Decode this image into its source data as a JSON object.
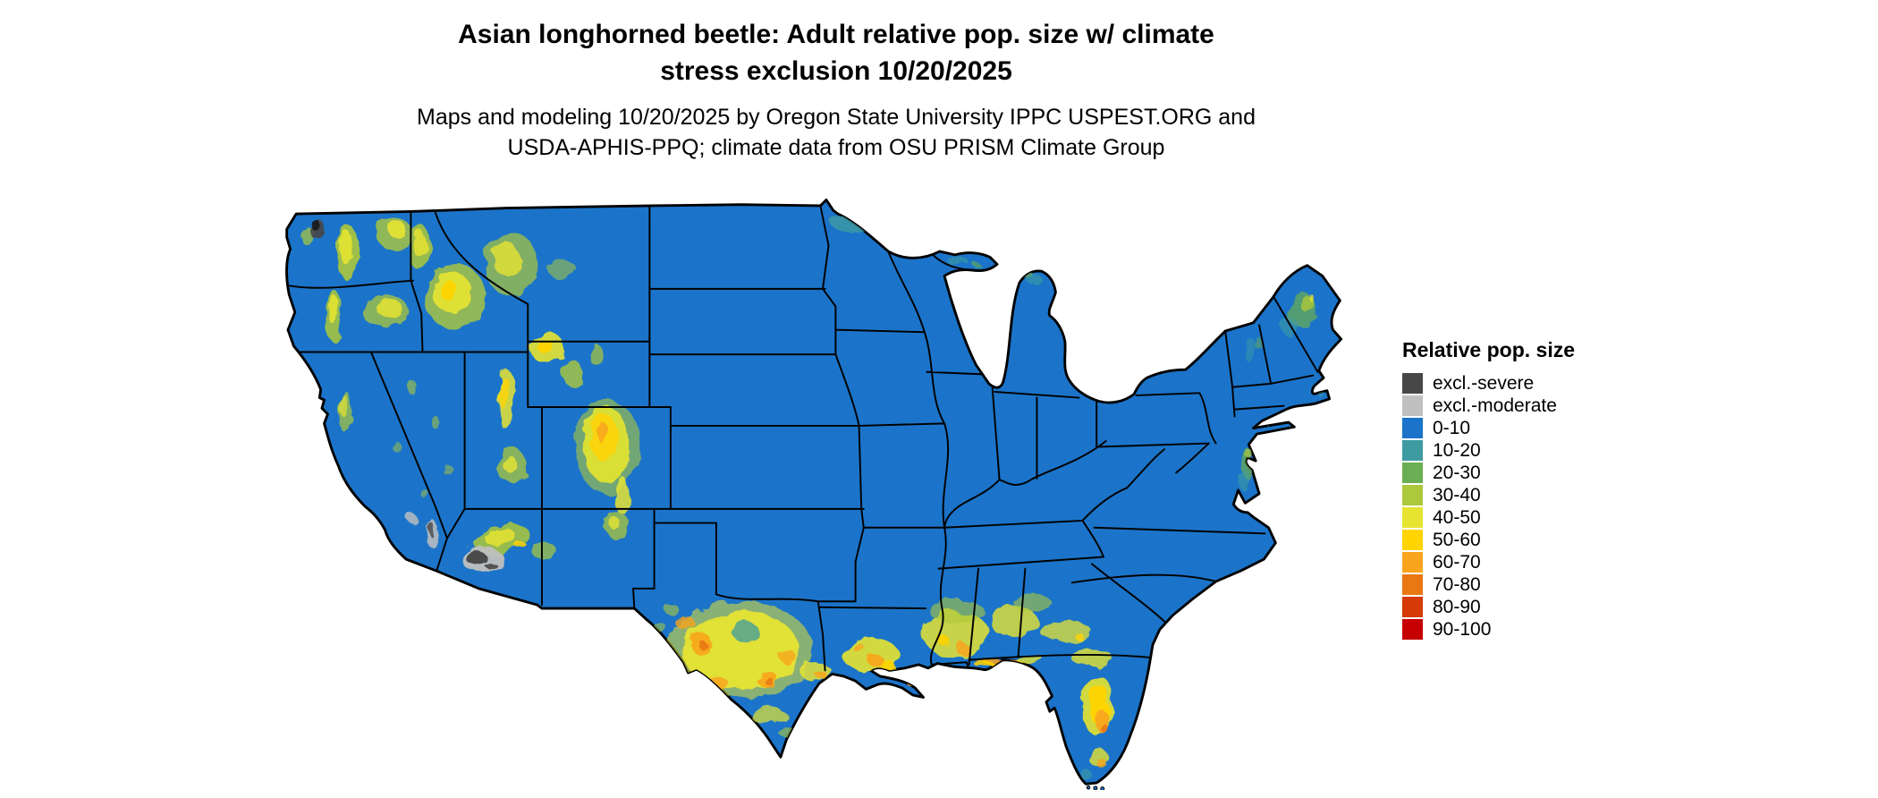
{
  "title": {
    "line1": "Asian longhorned beetle: Adult relative pop. size w/ climate",
    "line2": "stress exclusion 10/20/2025"
  },
  "subtitle": {
    "line1": "Maps and modeling 10/20/2025 by Oregon State University IPPC USPEST.ORG and",
    "line2": "USDA-APHIS-PPQ; climate data from OSU PRISM Climate Group"
  },
  "legend": {
    "title": "Relative pop. size",
    "items": [
      {
        "label": "excl.-severe",
        "color": "#474747"
      },
      {
        "label": "excl.-moderate",
        "color": "#C0C0C0"
      },
      {
        "label": "0-10",
        "color": "#1B74C9"
      },
      {
        "label": "10-20",
        "color": "#3E9BA2"
      },
      {
        "label": "20-30",
        "color": "#6BAE53"
      },
      {
        "label": "30-40",
        "color": "#ACC83B"
      },
      {
        "label": "40-50",
        "color": "#E6E431"
      },
      {
        "label": "50-60",
        "color": "#FFD400"
      },
      {
        "label": "60-70",
        "color": "#F8A51D"
      },
      {
        "label": "70-80",
        "color": "#E97712"
      },
      {
        "label": "80-90",
        "color": "#D63A06"
      },
      {
        "label": "90-100",
        "color": "#C60000"
      }
    ]
  },
  "map": {
    "type": "raster-choropleth-conus",
    "base_color": "#1B74C9",
    "border_color": "#000000",
    "background": "#FFFFFF",
    "palette": {
      "yg": "#ACC83B",
      "ye": "#E6E431",
      "go": "#FFD400",
      "or": "#F8A51D",
      "do": "#E97712",
      "te": "#3E9BA2",
      "gr": "#6BAE53",
      "gl": "#C0C0C0",
      "gd": "#474747",
      "dk": "#1A1A1A"
    },
    "hotspots": [
      [
        64,
        46,
        9,
        24,
        0,
        "yg",
        0.9
      ],
      [
        63,
        42,
        5,
        15,
        0,
        "ye",
        0.9
      ],
      [
        104,
        30,
        16,
        13,
        0,
        "yg",
        0.8
      ],
      [
        107,
        27,
        8,
        7,
        0,
        "ye",
        0.9
      ],
      [
        30,
        32,
        6,
        8,
        0,
        "yg",
        0.7
      ],
      [
        52,
        100,
        7,
        22,
        0,
        "yg",
        0.85
      ],
      [
        52,
        95,
        4,
        13,
        0,
        "ye",
        0.9
      ],
      [
        96,
        96,
        20,
        14,
        0,
        "yg",
        0.75
      ],
      [
        99,
        93,
        11,
        8,
        0,
        "ye",
        0.85
      ],
      [
        126,
        42,
        9,
        20,
        0,
        "yg",
        0.85
      ],
      [
        126,
        39,
        5,
        12,
        0,
        "ye",
        0.85
      ],
      [
        156,
        84,
        26,
        28,
        0,
        "yg",
        0.8
      ],
      [
        153,
        80,
        16,
        18,
        0,
        "ye",
        0.9
      ],
      [
        150,
        78,
        7,
        9,
        0,
        "go",
        0.9
      ],
      [
        204,
        56,
        23,
        27,
        0,
        "yg",
        0.7
      ],
      [
        200,
        52,
        12,
        14,
        0,
        "ye",
        0.8
      ],
      [
        247,
        60,
        12,
        8,
        0,
        "yg",
        0.55
      ],
      [
        235,
        128,
        15,
        13,
        0,
        "ye",
        0.9
      ],
      [
        233,
        126,
        7,
        6,
        0,
        "go",
        0.9
      ],
      [
        256,
        149,
        9,
        11,
        0,
        "yg",
        0.8
      ],
      [
        276,
        133,
        6,
        9,
        0,
        "yg",
        0.7
      ],
      [
        120,
        162,
        4,
        6,
        0,
        "yg",
        0.6
      ],
      [
        140,
        192,
        4,
        5,
        0,
        "yg",
        0.55
      ],
      [
        106,
        212,
        3,
        5,
        0,
        "yg",
        0.5
      ],
      [
        150,
        232,
        4,
        5,
        0,
        "yg",
        0.5
      ],
      [
        130,
        252,
        3,
        4,
        0,
        "yg",
        0.5
      ],
      [
        62,
        182,
        5,
        18,
        0,
        "yg",
        0.7
      ],
      [
        61,
        177,
        3,
        10,
        0,
        "ye",
        0.7
      ],
      [
        200,
        172,
        7,
        26,
        0,
        "ye",
        0.85
      ],
      [
        198,
        166,
        4,
        14,
        0,
        "go",
        0.8
      ],
      [
        204,
        228,
        13,
        15,
        0,
        "yg",
        0.75
      ],
      [
        202,
        226,
        6,
        7,
        0,
        "ye",
        0.8
      ],
      [
        286,
        212,
        28,
        40,
        0,
        "yg",
        0.6
      ],
      [
        285,
        210,
        20,
        32,
        0,
        "ye",
        0.9
      ],
      [
        283,
        204,
        12,
        20,
        0,
        "go",
        0.85
      ],
      [
        281,
        199,
        5,
        9,
        0,
        "or",
        0.85
      ],
      [
        299,
        254,
        7,
        16,
        0,
        "ye",
        0.85
      ],
      [
        294,
        279,
        11,
        11,
        0,
        "yg",
        0.75
      ],
      [
        292,
        277,
        5,
        5,
        0,
        "ye",
        0.8
      ],
      [
        196,
        291,
        24,
        11,
        -15,
        "yg",
        0.85
      ],
      [
        194,
        289,
        13,
        6,
        -15,
        "ye",
        0.85
      ],
      [
        212,
        296,
        5,
        3,
        0,
        "go",
        0.85
      ],
      [
        231,
        300,
        11,
        7,
        0,
        "yg",
        0.7
      ],
      [
        179,
        308,
        18,
        11,
        0,
        "gl",
        0.95
      ],
      [
        173,
        306,
        9,
        6,
        0,
        "gd",
        0.95
      ],
      [
        186,
        313,
        5,
        3,
        0,
        "gd",
        0.9
      ],
      [
        136,
        286,
        5,
        12,
        0,
        "gl",
        0.85
      ],
      [
        135,
        282,
        2.5,
        6,
        0,
        "gd",
        0.8
      ],
      [
        118,
        272,
        4,
        4,
        0,
        "gl",
        0.8
      ],
      [
        400,
        386,
        62,
        42,
        0,
        "ye",
        0.55
      ],
      [
        400,
        386,
        50,
        34,
        0,
        "ye",
        0.95
      ],
      [
        404,
        370,
        12,
        8,
        0,
        "te",
        0.75
      ],
      [
        366,
        380,
        10,
        8,
        0,
        "or",
        0.9
      ],
      [
        422,
        410,
        9,
        7,
        0,
        "or",
        0.9
      ],
      [
        381,
        414,
        8,
        6,
        0,
        "or",
        0.85
      ],
      [
        440,
        391,
        7,
        6,
        0,
        "or",
        0.8
      ],
      [
        352,
        362,
        8,
        6,
        0,
        "or",
        0.8
      ],
      [
        368,
        382,
        4,
        3,
        0,
        "do",
        0.9
      ],
      [
        424,
        412,
        4,
        3,
        0,
        "do",
        0.85
      ],
      [
        340,
        350,
        6,
        5,
        0,
        "yg",
        0.6
      ],
      [
        331,
        366,
        5,
        4,
        0,
        "yg",
        0.55
      ],
      [
        424,
        442,
        16,
        7,
        0,
        "ye",
        0.7
      ],
      [
        441,
        456,
        9,
        4,
        0,
        "yg",
        0.6
      ],
      [
        464,
        404,
        14,
        7,
        0,
        "ye",
        0.85
      ],
      [
        469,
        407,
        5,
        3,
        0,
        "or",
        0.85
      ],
      [
        511,
        390,
        24,
        15,
        0,
        "ye",
        0.9
      ],
      [
        516,
        395,
        7,
        5,
        0,
        "or",
        0.9
      ],
      [
        501,
        384,
        5,
        4,
        0,
        "or",
        0.8
      ],
      [
        526,
        399,
        6,
        4,
        0,
        "go",
        0.85
      ],
      [
        548,
        415,
        5,
        3,
        0,
        "or",
        0.8
      ],
      [
        584,
        372,
        28,
        20,
        0,
        "ye",
        0.85
      ],
      [
        590,
        385,
        6,
        5,
        0,
        "or",
        0.85
      ],
      [
        574,
        378,
        5,
        4,
        0,
        "go",
        0.85
      ],
      [
        584,
        352,
        24,
        9,
        0,
        "yg",
        0.6
      ],
      [
        634,
        362,
        20,
        14,
        0,
        "ye",
        0.8
      ],
      [
        649,
        345,
        16,
        8,
        0,
        "yg",
        0.6
      ],
      [
        678,
        370,
        22,
        9,
        0,
        "ye",
        0.75
      ],
      [
        689,
        374,
        4,
        3,
        0,
        "go",
        0.8
      ],
      [
        624,
        396,
        16,
        5,
        0,
        "or",
        0.85
      ],
      [
        609,
        398,
        9,
        3,
        0,
        "go",
        0.85
      ],
      [
        646,
        393,
        12,
        4,
        0,
        "ye",
        0.8
      ],
      [
        700,
        392,
        18,
        7,
        0,
        "ye",
        0.8
      ],
      [
        704,
        432,
        14,
        26,
        0,
        "ye",
        0.9
      ],
      [
        706,
        432,
        8,
        18,
        0,
        "go",
        0.9
      ],
      [
        709,
        447,
        5,
        10,
        0,
        "or",
        0.9
      ],
      [
        710,
        452,
        3,
        4,
        0,
        "do",
        0.85
      ],
      [
        705,
        477,
        8,
        8,
        0,
        "ye",
        0.8
      ],
      [
        708,
        482,
        4,
        4,
        0,
        "or",
        0.8
      ],
      [
        697,
        494,
        5,
        4,
        0,
        "te",
        0.6
      ],
      [
        494,
        20,
        18,
        7,
        0,
        "te",
        0.8
      ],
      [
        508,
        17,
        7,
        4,
        0,
        "gr",
        0.7
      ],
      [
        521,
        34,
        4,
        3,
        0,
        "te",
        0.6
      ],
      [
        540,
        43,
        3,
        2.5,
        0,
        "te",
        0.5
      ],
      [
        585,
        53,
        9,
        3.5,
        0,
        "te",
        0.6
      ],
      [
        600,
        55,
        3,
        2,
        0,
        "gr",
        0.6
      ],
      [
        649,
        67,
        7,
        4,
        0,
        "te",
        0.6
      ],
      [
        646,
        65,
        3,
        2,
        0,
        "gr",
        0.6
      ],
      [
        682,
        24,
        13,
        2.5,
        12,
        "go",
        0.9
      ],
      [
        836,
        130,
        5,
        11,
        0,
        "te",
        0.45
      ],
      [
        843,
        124,
        3,
        5,
        0,
        "gr",
        0.5
      ],
      [
        879,
        95,
        13,
        15,
        0,
        "gr",
        0.7
      ],
      [
        884,
        90,
        6,
        7,
        0,
        "yg",
        0.8
      ],
      [
        870,
        110,
        7,
        8,
        0,
        "te",
        0.55
      ],
      [
        888,
        85,
        2.5,
        2.5,
        0,
        "ye",
        0.8
      ],
      [
        832,
        226,
        4.5,
        13,
        0,
        "gr",
        0.7
      ],
      [
        830,
        241,
        3.5,
        9,
        0,
        "te",
        0.6
      ],
      [
        834,
        218,
        3.5,
        4,
        0,
        "yg",
        0.7
      ],
      [
        855,
        192,
        7,
        2.5,
        0,
        "te",
        0.5
      ],
      [
        895,
        166,
        3.5,
        2.5,
        0,
        "te",
        0.45
      ],
      [
        38,
        26,
        6,
        9,
        0,
        "gd",
        0.9
      ],
      [
        36,
        22,
        3.5,
        5,
        0,
        "dk",
        0.9
      ]
    ]
  }
}
